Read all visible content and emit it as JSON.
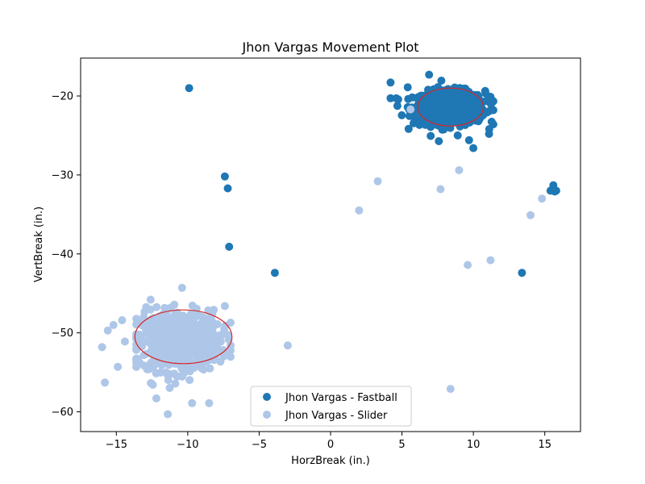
{
  "chart_data": {
    "type": "scatter",
    "title": "Jhon Vargas Movement Plot",
    "xlabel": "HorzBreak (in.)",
    "ylabel": "VertBreak (in.)",
    "xlim": [
      -17.5,
      17.5
    ],
    "ylim": [
      -62.5,
      -15.2
    ],
    "x_ticks": [
      -15,
      -10,
      -5,
      0,
      5,
      10,
      15
    ],
    "x_tick_labels": [
      "−15",
      "−10",
      "−5",
      "0",
      "5",
      "10",
      "15"
    ],
    "y_ticks": [
      -60,
      -50,
      -40,
      -30,
      -20
    ],
    "y_tick_labels": [
      "−60",
      "−50",
      "−40",
      "−30",
      "−20"
    ],
    "grid": false,
    "legend_position": "lower-center",
    "series": [
      {
        "name": "Jhon Vargas - Fastball",
        "color": "#1f77b4",
        "cluster": {
          "center": [
            8.3,
            -21.5
          ],
          "spread": [
            1.25,
            1.05
          ],
          "count": 600,
          "xrange": [
            4.2,
            11.4
          ],
          "yrange": [
            -26.6,
            -17.3
          ]
        },
        "points": [
          [
            4.2,
            -18.3
          ],
          [
            6.9,
            -17.3
          ],
          [
            4.6,
            -20.3
          ],
          [
            5.4,
            -18.9
          ],
          [
            11.2,
            -20.1
          ],
          [
            11.1,
            -24.8
          ],
          [
            9.7,
            -25.6
          ],
          [
            10.0,
            -26.6
          ],
          [
            8.9,
            -25.0
          ],
          [
            7.4,
            -23.6
          ],
          [
            -9.9,
            -19.0
          ],
          [
            -7.4,
            -30.2
          ],
          [
            -7.2,
            -31.7
          ],
          [
            -7.1,
            -39.1
          ],
          [
            -3.9,
            -42.4
          ],
          [
            13.4,
            -42.4
          ],
          [
            15.6,
            -31.3
          ],
          [
            15.4,
            -32.0
          ],
          [
            15.7,
            -32.1
          ],
          [
            15.8,
            -32.0
          ]
        ],
        "ellipse": {
          "center": [
            8.4,
            -21.4
          ],
          "radius": [
            2.3,
            2.4
          ],
          "color": "#d62728"
        }
      },
      {
        "name": "Jhon Vargas - Slider",
        "color": "#aec7e8",
        "cluster": {
          "center": [
            -10.6,
            -51.0
          ],
          "spread": [
            1.45,
            1.9
          ],
          "count": 600,
          "xrange": [
            -13.6,
            -7.0
          ],
          "yrange": [
            -60.3,
            -44.3
          ]
        },
        "points": [
          [
            -16.0,
            -51.8
          ],
          [
            -15.6,
            -49.7
          ],
          [
            -15.2,
            -49.0
          ],
          [
            -14.6,
            -48.4
          ],
          [
            -14.9,
            -54.3
          ],
          [
            -15.8,
            -56.3
          ],
          [
            -14.4,
            -51.1
          ],
          [
            -13.6,
            -53.8
          ],
          [
            -12.6,
            -45.8
          ],
          [
            -12.2,
            -58.3
          ],
          [
            -11.4,
            -60.3
          ],
          [
            -10.4,
            -44.3
          ],
          [
            -9.7,
            -58.9
          ],
          [
            -8.5,
            -58.9
          ],
          [
            -7.4,
            -46.6
          ],
          [
            -7.0,
            -52.2
          ],
          [
            -3.0,
            -51.6
          ],
          [
            2.0,
            -34.5
          ],
          [
            3.3,
            -30.8
          ],
          [
            5.6,
            -21.7
          ],
          [
            7.7,
            -31.8
          ],
          [
            9.0,
            -29.4
          ],
          [
            9.6,
            -41.4
          ],
          [
            11.2,
            -40.8
          ],
          [
            14.0,
            -35.1
          ],
          [
            14.8,
            -33.0
          ],
          [
            8.4,
            -57.1
          ]
        ],
        "ellipse": {
          "center": [
            -10.3,
            -50.5
          ],
          "radius": [
            3.4,
            3.4
          ],
          "color": "#d62728"
        }
      }
    ]
  }
}
